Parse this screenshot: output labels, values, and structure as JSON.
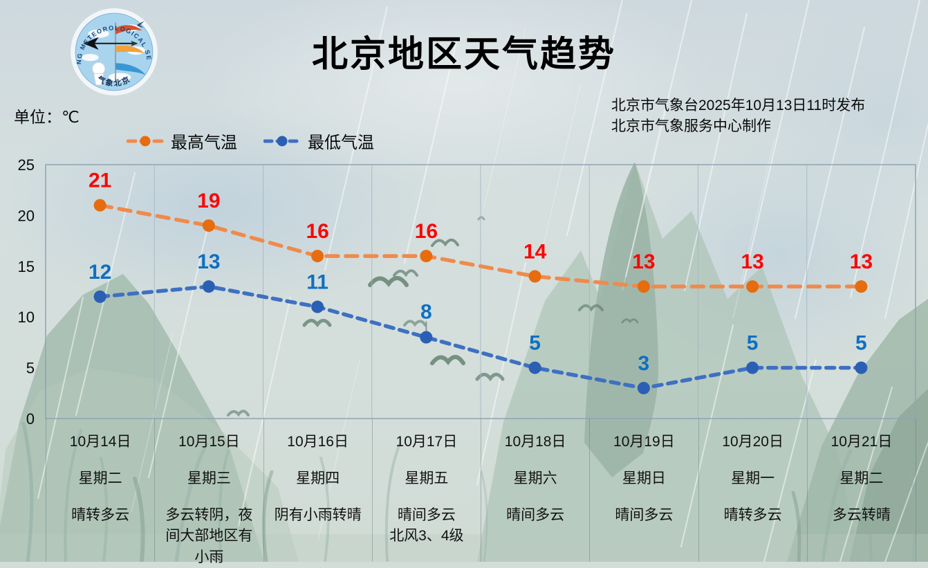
{
  "header": {
    "title": "北京地区天气趋势",
    "logo": {
      "ring_text": "BEIJING METEOROLOGICAL SERVICE",
      "name_text": "气象北京"
    },
    "issued_line1": "北京市气象台2025年10月13日11时发布",
    "issued_line2": "北京市气象服务中心制作"
  },
  "unit_label": "单位：℃",
  "chart_data": {
    "type": "line",
    "title": "北京地区天气趋势",
    "unit": "℃",
    "ylim": [
      0,
      25
    ],
    "yticks": [
      25,
      20,
      15,
      10,
      5,
      0
    ],
    "grid": "vertical-column-dividers-only",
    "legend_position": "top-left",
    "categories": [
      "10月14日",
      "10月15日",
      "10月16日",
      "10月17日",
      "10月18日",
      "10月19日",
      "10月20日",
      "10月21日"
    ],
    "weekdays": [
      "星期二",
      "星期三",
      "星期四",
      "星期五",
      "星期六",
      "星期日",
      "星期一",
      "星期二"
    ],
    "weather": [
      "晴转多云",
      "多云转阴，夜间大部地区有小雨",
      "阴有小雨转晴",
      "晴间多云\n北风3、4级",
      "晴间多云",
      "晴间多云",
      "晴转多云",
      "多云转晴"
    ],
    "series": [
      {
        "name": "最高气温",
        "values": [
          21,
          19,
          16,
          16,
          14,
          13,
          13,
          13
        ],
        "line_color": "#f08a4b",
        "marker_color": "#e66c0e",
        "label_color": "#fb0505",
        "dash": "17 11"
      },
      {
        "name": "最低气温",
        "values": [
          12,
          13,
          11,
          8,
          5,
          3,
          5,
          5
        ],
        "line_color": "#3e70c2",
        "marker_color": "#2a5fb4",
        "label_color": "#0f6fc2",
        "dash": "12 9",
        "leader_index": 3
      }
    ]
  }
}
